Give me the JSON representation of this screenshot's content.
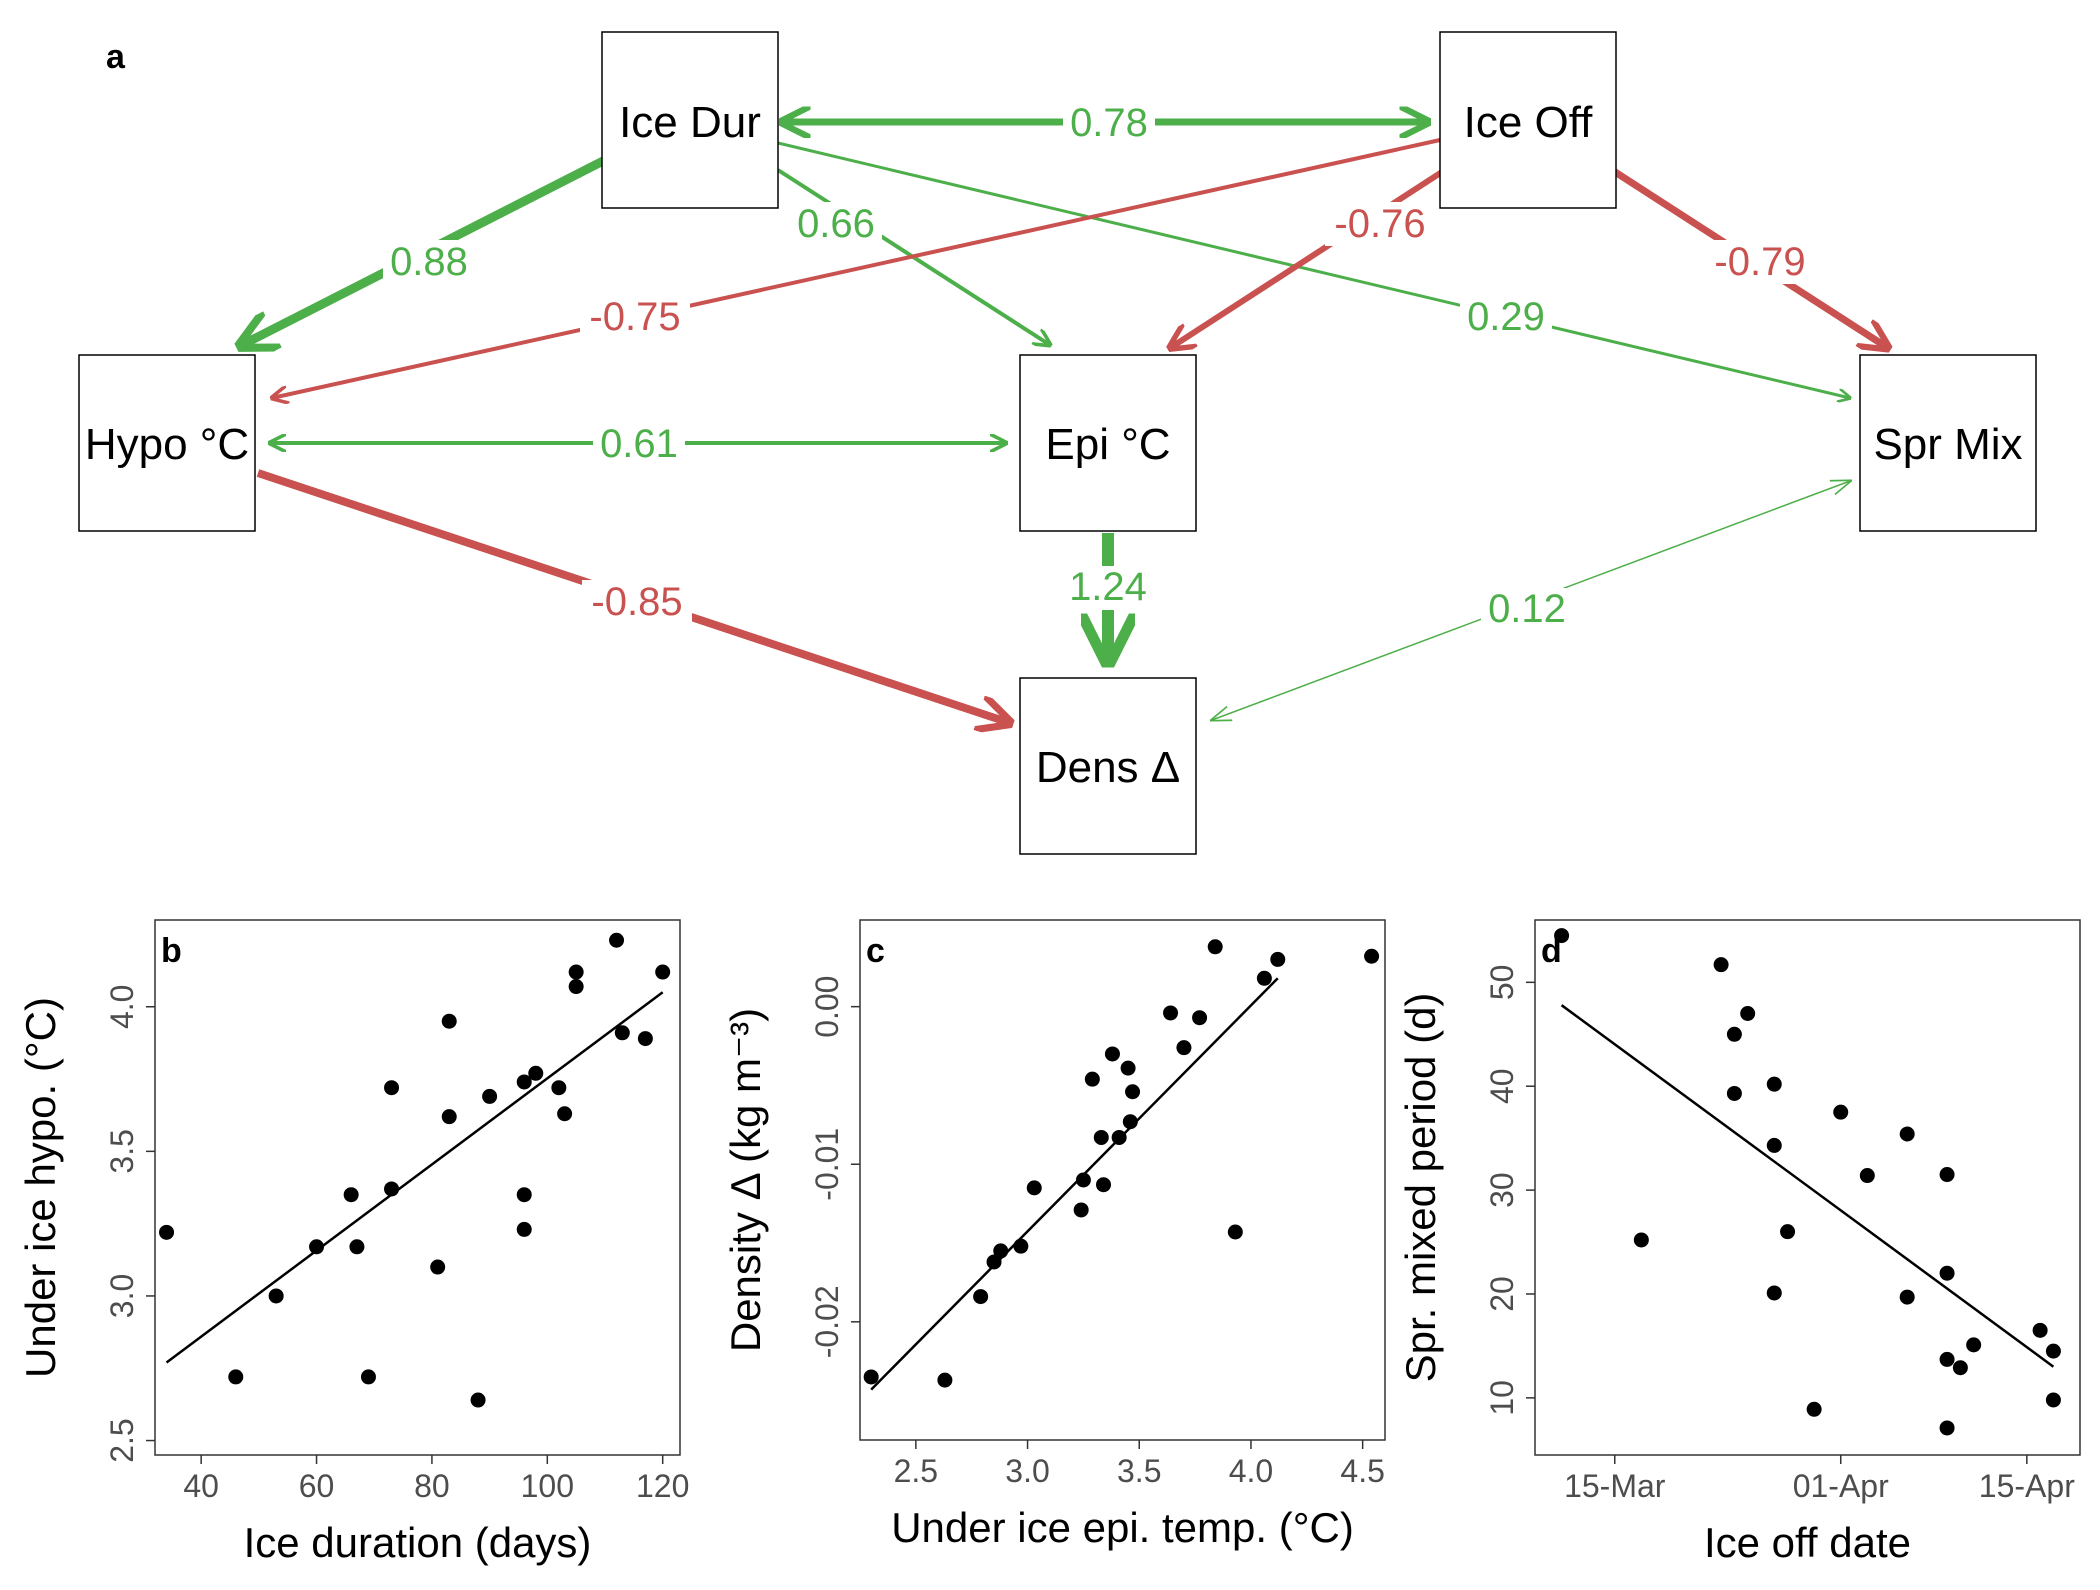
{
  "colors": {
    "positive": "#4daf4a",
    "negative": "#c9514f",
    "points": "#000000",
    "fit_line": "#000000"
  },
  "panel_letters": {
    "a": "a",
    "b": "b",
    "c": "c",
    "d": "d"
  },
  "diagram": {
    "nodes": [
      {
        "id": "ice_dur",
        "label": "Ice Dur"
      },
      {
        "id": "ice_off",
        "label": "Ice Off"
      },
      {
        "id": "hypo",
        "label": "Hypo °C"
      },
      {
        "id": "epi",
        "label": "Epi °C"
      },
      {
        "id": "spr",
        "label": "Spr Mix"
      },
      {
        "id": "dens",
        "label": "Dens Δ"
      }
    ],
    "edges": [
      {
        "from": "ice_dur",
        "to": "ice_off",
        "label": "0.78",
        "sign": "positive",
        "double": true
      },
      {
        "from": "ice_dur",
        "to": "hypo",
        "label": "0.88",
        "sign": "positive",
        "double": false
      },
      {
        "from": "ice_dur",
        "to": "epi",
        "label": "0.66",
        "sign": "positive",
        "double": false
      },
      {
        "from": "ice_dur",
        "to": "spr",
        "label": "0.29",
        "sign": "positive",
        "double": false
      },
      {
        "from": "ice_off",
        "to": "hypo",
        "label": "-0.75",
        "sign": "negative",
        "double": false
      },
      {
        "from": "ice_off",
        "to": "epi",
        "label": "-0.76",
        "sign": "negative",
        "double": false
      },
      {
        "from": "ice_off",
        "to": "spr",
        "label": "-0.79",
        "sign": "negative",
        "double": false
      },
      {
        "from": "hypo",
        "to": "epi",
        "label": "0.61",
        "sign": "positive",
        "double": true
      },
      {
        "from": "hypo",
        "to": "dens",
        "label": "-0.85",
        "sign": "negative",
        "double": false
      },
      {
        "from": "epi",
        "to": "dens",
        "label": "1.24",
        "sign": "positive",
        "double": false
      },
      {
        "from": "spr",
        "to": "dens",
        "label": "0.12",
        "sign": "positive",
        "double": true
      }
    ]
  },
  "chart_data": [
    {
      "panel": "b",
      "type": "scatter",
      "xlabel": "Ice duration (days)",
      "ylabel": "Under ice hypo. (°C)",
      "xlim": [
        32,
        123
      ],
      "ylim": [
        2.45,
        4.3
      ],
      "xticks": [
        40,
        60,
        80,
        100,
        120
      ],
      "yticks": [
        2.5,
        3.0,
        3.5,
        4.0
      ],
      "xtick_labels": [
        "40",
        "60",
        "80",
        "100",
        "120"
      ],
      "ytick_labels": [
        "2.5",
        "3.0",
        "3.5",
        "4.0"
      ],
      "points": [
        [
          34,
          3.22
        ],
        [
          46,
          2.72
        ],
        [
          53,
          3.0
        ],
        [
          60,
          3.17
        ],
        [
          66,
          3.35
        ],
        [
          67,
          3.17
        ],
        [
          69,
          2.72
        ],
        [
          73,
          3.72
        ],
        [
          73,
          3.37
        ],
        [
          81,
          3.1
        ],
        [
          83,
          3.95
        ],
        [
          83,
          3.62
        ],
        [
          88,
          2.64
        ],
        [
          90,
          3.69
        ],
        [
          96,
          3.74
        ],
        [
          96,
          3.35
        ],
        [
          96,
          3.23
        ],
        [
          98,
          3.77
        ],
        [
          102,
          3.72
        ],
        [
          103,
          3.63
        ],
        [
          105,
          4.12
        ],
        [
          105,
          4.07
        ],
        [
          112,
          4.23
        ],
        [
          113,
          3.91
        ],
        [
          117,
          3.89
        ],
        [
          120,
          4.12
        ]
      ],
      "fit_line": [
        [
          34,
          2.77
        ],
        [
          120,
          4.05
        ]
      ]
    },
    {
      "panel": "c",
      "type": "scatter",
      "xlabel": "Under ice epi. temp. (°C)",
      "ylabel": "Density Δ (kg m⁻³)",
      "xlim": [
        2.25,
        4.6
      ],
      "ylim": [
        -0.0275,
        0.0055
      ],
      "xticks": [
        2.5,
        3.0,
        3.5,
        4.0,
        4.5
      ],
      "yticks": [
        -0.02,
        -0.01,
        0.0
      ],
      "xtick_labels": [
        "2.5",
        "3.0",
        "3.5",
        "4.0",
        "4.5"
      ],
      "ytick_labels": [
        "-0.02",
        "-0.01",
        "0.00"
      ],
      "points": [
        [
          2.3,
          -0.0235
        ],
        [
          2.63,
          -0.0237
        ],
        [
          2.79,
          -0.0184
        ],
        [
          2.85,
          -0.0162
        ],
        [
          2.88,
          -0.0155
        ],
        [
          2.97,
          -0.0152
        ],
        [
          3.03,
          -0.0115
        ],
        [
          3.24,
          -0.0129
        ],
        [
          3.25,
          -0.011
        ],
        [
          3.29,
          -0.0046
        ],
        [
          3.33,
          -0.0083
        ],
        [
          3.34,
          -0.0113
        ],
        [
          3.38,
          -0.003
        ],
        [
          3.41,
          -0.0083
        ],
        [
          3.45,
          -0.0039
        ],
        [
          3.46,
          -0.0073
        ],
        [
          3.47,
          -0.0054
        ],
        [
          3.64,
          -0.0004
        ],
        [
          3.7,
          -0.0026
        ],
        [
          3.77,
          -0.0007
        ],
        [
          3.84,
          0.0038
        ],
        [
          3.93,
          -0.0143
        ],
        [
          4.06,
          0.0018
        ],
        [
          4.12,
          0.003
        ],
        [
          4.54,
          0.0032
        ]
      ],
      "fit_line": [
        [
          2.3,
          -0.0243
        ],
        [
          4.12,
          0.0018
        ]
      ]
    },
    {
      "panel": "d",
      "type": "scatter",
      "xlabel": "Ice off date",
      "ylabel": "Spr. mixed period (d)",
      "xlim": [
        "2023-03-09",
        "2023-04-19"
      ],
      "ylim": [
        4.5,
        56
      ],
      "xticks": [
        "2023-03-15",
        "2023-04-01",
        "2023-04-15"
      ],
      "yticks": [
        10,
        20,
        30,
        40,
        50
      ],
      "xtick_labels": [
        "15-Mar",
        "01-Apr",
        "15-Apr"
      ],
      "ytick_labels": [
        "10",
        "20",
        "30",
        "40",
        "50"
      ],
      "points": [
        [
          "2023-03-11",
          54.5
        ],
        [
          "2023-03-17",
          25.2
        ],
        [
          "2023-03-23",
          51.7
        ],
        [
          "2023-03-24",
          45.0
        ],
        [
          "2023-03-24",
          39.3
        ],
        [
          "2023-03-25",
          47.0
        ],
        [
          "2023-03-27",
          40.2
        ],
        [
          "2023-03-27",
          34.3
        ],
        [
          "2023-03-27",
          20.1
        ],
        [
          "2023-03-28",
          26.0
        ],
        [
          "2023-03-30",
          8.9
        ],
        [
          "2023-04-01",
          37.5
        ],
        [
          "2023-04-03",
          31.4
        ],
        [
          "2023-04-06",
          35.4
        ],
        [
          "2023-04-06",
          19.7
        ],
        [
          "2023-04-09",
          31.5
        ],
        [
          "2023-04-09",
          22.0
        ],
        [
          "2023-04-09",
          13.7
        ],
        [
          "2023-04-09",
          7.1
        ],
        [
          "2023-04-10",
          12.9
        ],
        [
          "2023-04-11",
          15.1
        ],
        [
          "2023-04-16",
          16.5
        ],
        [
          "2023-04-17",
          14.5
        ],
        [
          "2023-04-17",
          9.8
        ]
      ],
      "fit_line": [
        [
          "2023-03-11",
          47.8
        ],
        [
          "2023-04-17",
          13.0
        ]
      ]
    }
  ]
}
